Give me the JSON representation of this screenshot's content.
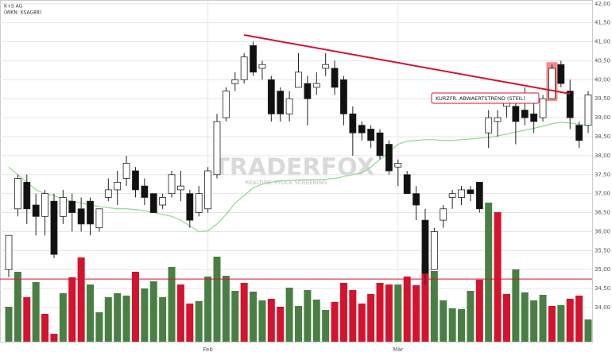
{
  "chart_data": {
    "type": "candlestick",
    "title": "K+S AG",
    "subtitle": "(WKN: KSAG88)",
    "watermark": "TRADERFOX",
    "watermark_sub": "REALTIME STOCK SCREENING",
    "annotation": "KURZFR. ABWAERTSTREND (STEIL)",
    "categories": [
      null,
      null,
      null,
      null,
      null,
      null,
      null,
      null,
      null,
      null,
      null,
      null,
      null,
      null,
      null,
      null,
      null,
      null,
      null,
      null,
      null,
      null,
      "Feb",
      null,
      null,
      null,
      null,
      null,
      null,
      null,
      null,
      null,
      null,
      null,
      null,
      null,
      null,
      null,
      null,
      null,
      null,
      null,
      null,
      "Mär",
      null,
      null,
      null,
      null,
      null,
      null,
      null,
      null,
      null,
      null,
      null,
      null,
      null,
      null,
      null,
      null,
      null,
      null,
      null,
      null,
      null
    ],
    "open": [
      35.0,
      36.6,
      37.3,
      36.7,
      36.4,
      36.8,
      36.4,
      36.8,
      36.6,
      36.8,
      36.1,
      36.9,
      37.1,
      37.4,
      37.6,
      37.2,
      37.0,
      36.7,
      37.0,
      37.1,
      37.0,
      36.5,
      36.6,
      37.5,
      39.0,
      39.9,
      40.0,
      40.9,
      40.3,
      40.0,
      39.7,
      39.1,
      39.8,
      39.9,
      39.8,
      40.3,
      40.3,
      40.0,
      39.1,
      38.8,
      38.7,
      38.6,
      38.3,
      37.7,
      37.5,
      37.0,
      36.3,
      35.0,
      36.3,
      36.9,
      36.9,
      37.1,
      37.3,
      38.6,
      38.9,
      39.3,
      39.3,
      39.2,
      39.1,
      39.0,
      39.5,
      40.4,
      39.7,
      38.8,
      38.8
    ],
    "high": [
      35.9,
      37.5,
      37.5,
      37.0,
      37.1,
      37.0,
      37.1,
      37.0,
      36.9,
      36.9,
      36.6,
      37.4,
      37.6,
      38.0,
      37.7,
      37.4,
      37.0,
      37.0,
      37.6,
      37.6,
      37.1,
      37.2,
      37.7,
      39.1,
      39.8,
      40.2,
      40.7,
      41.0,
      40.5,
      40.1,
      39.8,
      39.7,
      40.7,
      40.1,
      40.2,
      40.7,
      40.5,
      40.1,
      39.3,
      38.9,
      38.8,
      38.7,
      38.4,
      37.9,
      37.6,
      37.2,
      36.6,
      36.1,
      36.7,
      37.1,
      37.2,
      37.2,
      37.3,
      39.2,
      39.2,
      39.5,
      39.5,
      39.8,
      39.4,
      39.6,
      40.4,
      40.5,
      40.0,
      38.9,
      39.7
    ],
    "low": [
      34.8,
      36.4,
      36.2,
      35.9,
      35.9,
      35.3,
      36.2,
      36.0,
      36.0,
      35.9,
      36.0,
      36.8,
      36.7,
      37.2,
      36.9,
      36.7,
      36.5,
      36.6,
      36.9,
      36.8,
      36.1,
      36.4,
      36.5,
      37.4,
      38.9,
      39.7,
      39.9,
      40.1,
      40.0,
      38.9,
      38.9,
      38.9,
      39.8,
      38.8,
      39.6,
      40.1,
      39.6,
      38.8,
      38.0,
      38.4,
      38.2,
      37.9,
      37.5,
      37.2,
      37.0,
      36.3,
      34.6,
      35.0,
      36.1,
      36.6,
      36.7,
      36.8,
      36.5,
      38.2,
      38.5,
      39.0,
      38.3,
      38.8,
      38.6,
      38.9,
      39.5,
      39.8,
      38.7,
      38.2,
      38.6
    ],
    "close": [
      35.9,
      37.4,
      36.6,
      36.4,
      37.0,
      35.4,
      36.9,
      36.5,
      36.2,
      36.2,
      36.6,
      37.1,
      37.3,
      37.8,
      37.1,
      36.9,
      36.5,
      36.9,
      37.5,
      37.2,
      36.3,
      37.0,
      37.6,
      38.9,
      39.7,
      40.0,
      40.6,
      40.2,
      40.4,
      39.1,
      39.1,
      39.5,
      40.2,
      39.5,
      39.9,
      40.4,
      39.8,
      39.1,
      38.6,
      38.6,
      38.4,
      38.0,
      37.6,
      37.8,
      37.0,
      36.7,
      34.9,
      36.0,
      36.6,
      37.0,
      37.1,
      37.0,
      36.6,
      39.0,
      39.0,
      39.4,
      38.9,
      39.0,
      38.9,
      39.5,
      40.3,
      39.9,
      39.0,
      38.4,
      39.6
    ],
    "ma": [
      37.7,
      37.5,
      37.3,
      37.1,
      37.0,
      36.95,
      36.85,
      36.8,
      36.75,
      36.7,
      36.66,
      36.63,
      36.6,
      36.6,
      36.58,
      36.55,
      36.5,
      36.45,
      36.4,
      36.3,
      36.15,
      36.0,
      36.02,
      36.2,
      36.45,
      36.75,
      36.95,
      37.15,
      37.25,
      37.3,
      37.33,
      37.35,
      37.36,
      37.37,
      37.37,
      37.38,
      37.4,
      37.45,
      37.5,
      37.55,
      37.7,
      37.9,
      38.1,
      38.3,
      38.38,
      38.4,
      38.42,
      38.42,
      38.4,
      38.4,
      38.42,
      38.44,
      38.46,
      38.48,
      38.52,
      38.57,
      38.62,
      38.67,
      38.72,
      38.78,
      38.84,
      38.88,
      38.86,
      38.82,
      38.8
    ],
    "volume": [
      44,
      88,
      56,
      75,
      35,
      10,
      61,
      81,
      106,
      72,
      37,
      56,
      61,
      58,
      88,
      67,
      76,
      56,
      94,
      72,
      48,
      51,
      82,
      107,
      83,
      64,
      74,
      63,
      52,
      54,
      44,
      68,
      45,
      65,
      53,
      40,
      50,
      74,
      65,
      48,
      60,
      74,
      72,
      72,
      82,
      71,
      98,
      89,
      52,
      42,
      41,
      64,
      78,
      175,
      163,
      60,
      91,
      62,
      52,
      59,
      45,
      46,
      54,
      58,
      28
    ],
    "volume_colors": [
      "g",
      "g",
      "r",
      "g",
      "r",
      "r",
      "g",
      "r",
      "r",
      "g",
      "g",
      "g",
      "g",
      "g",
      "r",
      "g",
      "g",
      "g",
      "g",
      "r",
      "r",
      "g",
      "g",
      "g",
      "g",
      "g",
      "r",
      "g",
      "g",
      "r",
      "r",
      "g",
      "g",
      "g",
      "g",
      "g",
      "r",
      "r",
      "r",
      "r",
      "r",
      "r",
      "r",
      "g",
      "r",
      "r",
      "r",
      "g",
      "g",
      "g",
      "g",
      "g",
      "r",
      "g",
      "r",
      "r",
      "g",
      "g",
      "g",
      "g",
      "r",
      "g",
      "r",
      "r",
      "g"
    ],
    "up_color": "#ffffff",
    "down_color": "#111111",
    "green": "#4a7f44",
    "red": "#d4132e",
    "ma_color": "#8fd88f",
    "trendline": {
      "x": [
        26,
        62
      ],
      "y": [
        41.18,
        39.63
      ],
      "color": "#d4132e"
    },
    "hline": 34.75,
    "highlight": 60,
    "ylim": [
      33.1,
      42.1
    ],
    "yticks": [
      {
        "value": 34,
        "label": "34,00"
      },
      {
        "value": 34.5,
        "label": "34,50"
      },
      {
        "value": 35,
        "label": "35,00"
      },
      {
        "value": 35.5,
        "label": "35,50"
      },
      {
        "value": 36,
        "label": "36,00"
      },
      {
        "value": 36.5,
        "label": "36,50"
      },
      {
        "value": 37,
        "label": "37,00"
      },
      {
        "value": 37.5,
        "label": "37,50"
      },
      {
        "value": 38,
        "label": "38,00"
      },
      {
        "value": 38.5,
        "label": "38,50"
      },
      {
        "value": 39,
        "label": "39,00"
      },
      {
        "value": 39.5,
        "label": "39,50"
      },
      {
        "value": 40,
        "label": "40,00"
      },
      {
        "value": 40.5,
        "label": "40,50"
      },
      {
        "value": 41,
        "label": "41,00"
      },
      {
        "value": 41.5,
        "label": "41,50"
      },
      {
        "value": 42,
        "label": "42,00"
      }
    ],
    "grid": true
  }
}
